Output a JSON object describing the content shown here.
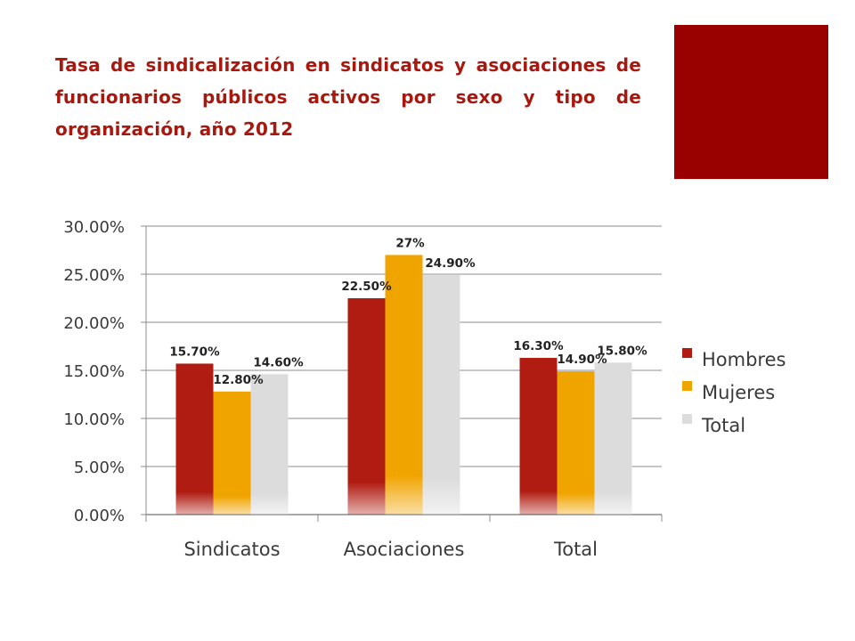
{
  "slide": {
    "title": "Tasa de sindicalización en sindicatos y asociaciones de funcionarios públicos activos por sexo y tipo de organización, año 2012",
    "accent_color": "#990000"
  },
  "chart_data": {
    "type": "bar",
    "categories": [
      "Sindicatos",
      "Asociaciones",
      "Total"
    ],
    "series": [
      {
        "name": "Hombres",
        "values": [
          15.7,
          22.5,
          16.3
        ],
        "labels": [
          "15.70%",
          "22.50%",
          "16.30%"
        ],
        "color": "#b01c12"
      },
      {
        "name": "Mujeres",
        "values": [
          12.8,
          27.0,
          14.9
        ],
        "labels": [
          "12.80%",
          "27%",
          "14.90%"
        ],
        "color": "#f0a400"
      },
      {
        "name": "Total",
        "values": [
          14.6,
          24.9,
          15.8
        ],
        "labels": [
          "14.60%",
          "24.90%",
          "15.80%"
        ],
        "color": "#dcdcdc"
      }
    ],
    "ylim": [
      0,
      30
    ],
    "yticks": [
      0,
      5,
      10,
      15,
      20,
      25,
      30
    ],
    "ytick_labels": [
      "0.00%",
      "5.00%",
      "10.00%",
      "15.00%",
      "20.00%",
      "25.00%",
      "30.00%"
    ],
    "grid": true,
    "legend_position": "right"
  }
}
